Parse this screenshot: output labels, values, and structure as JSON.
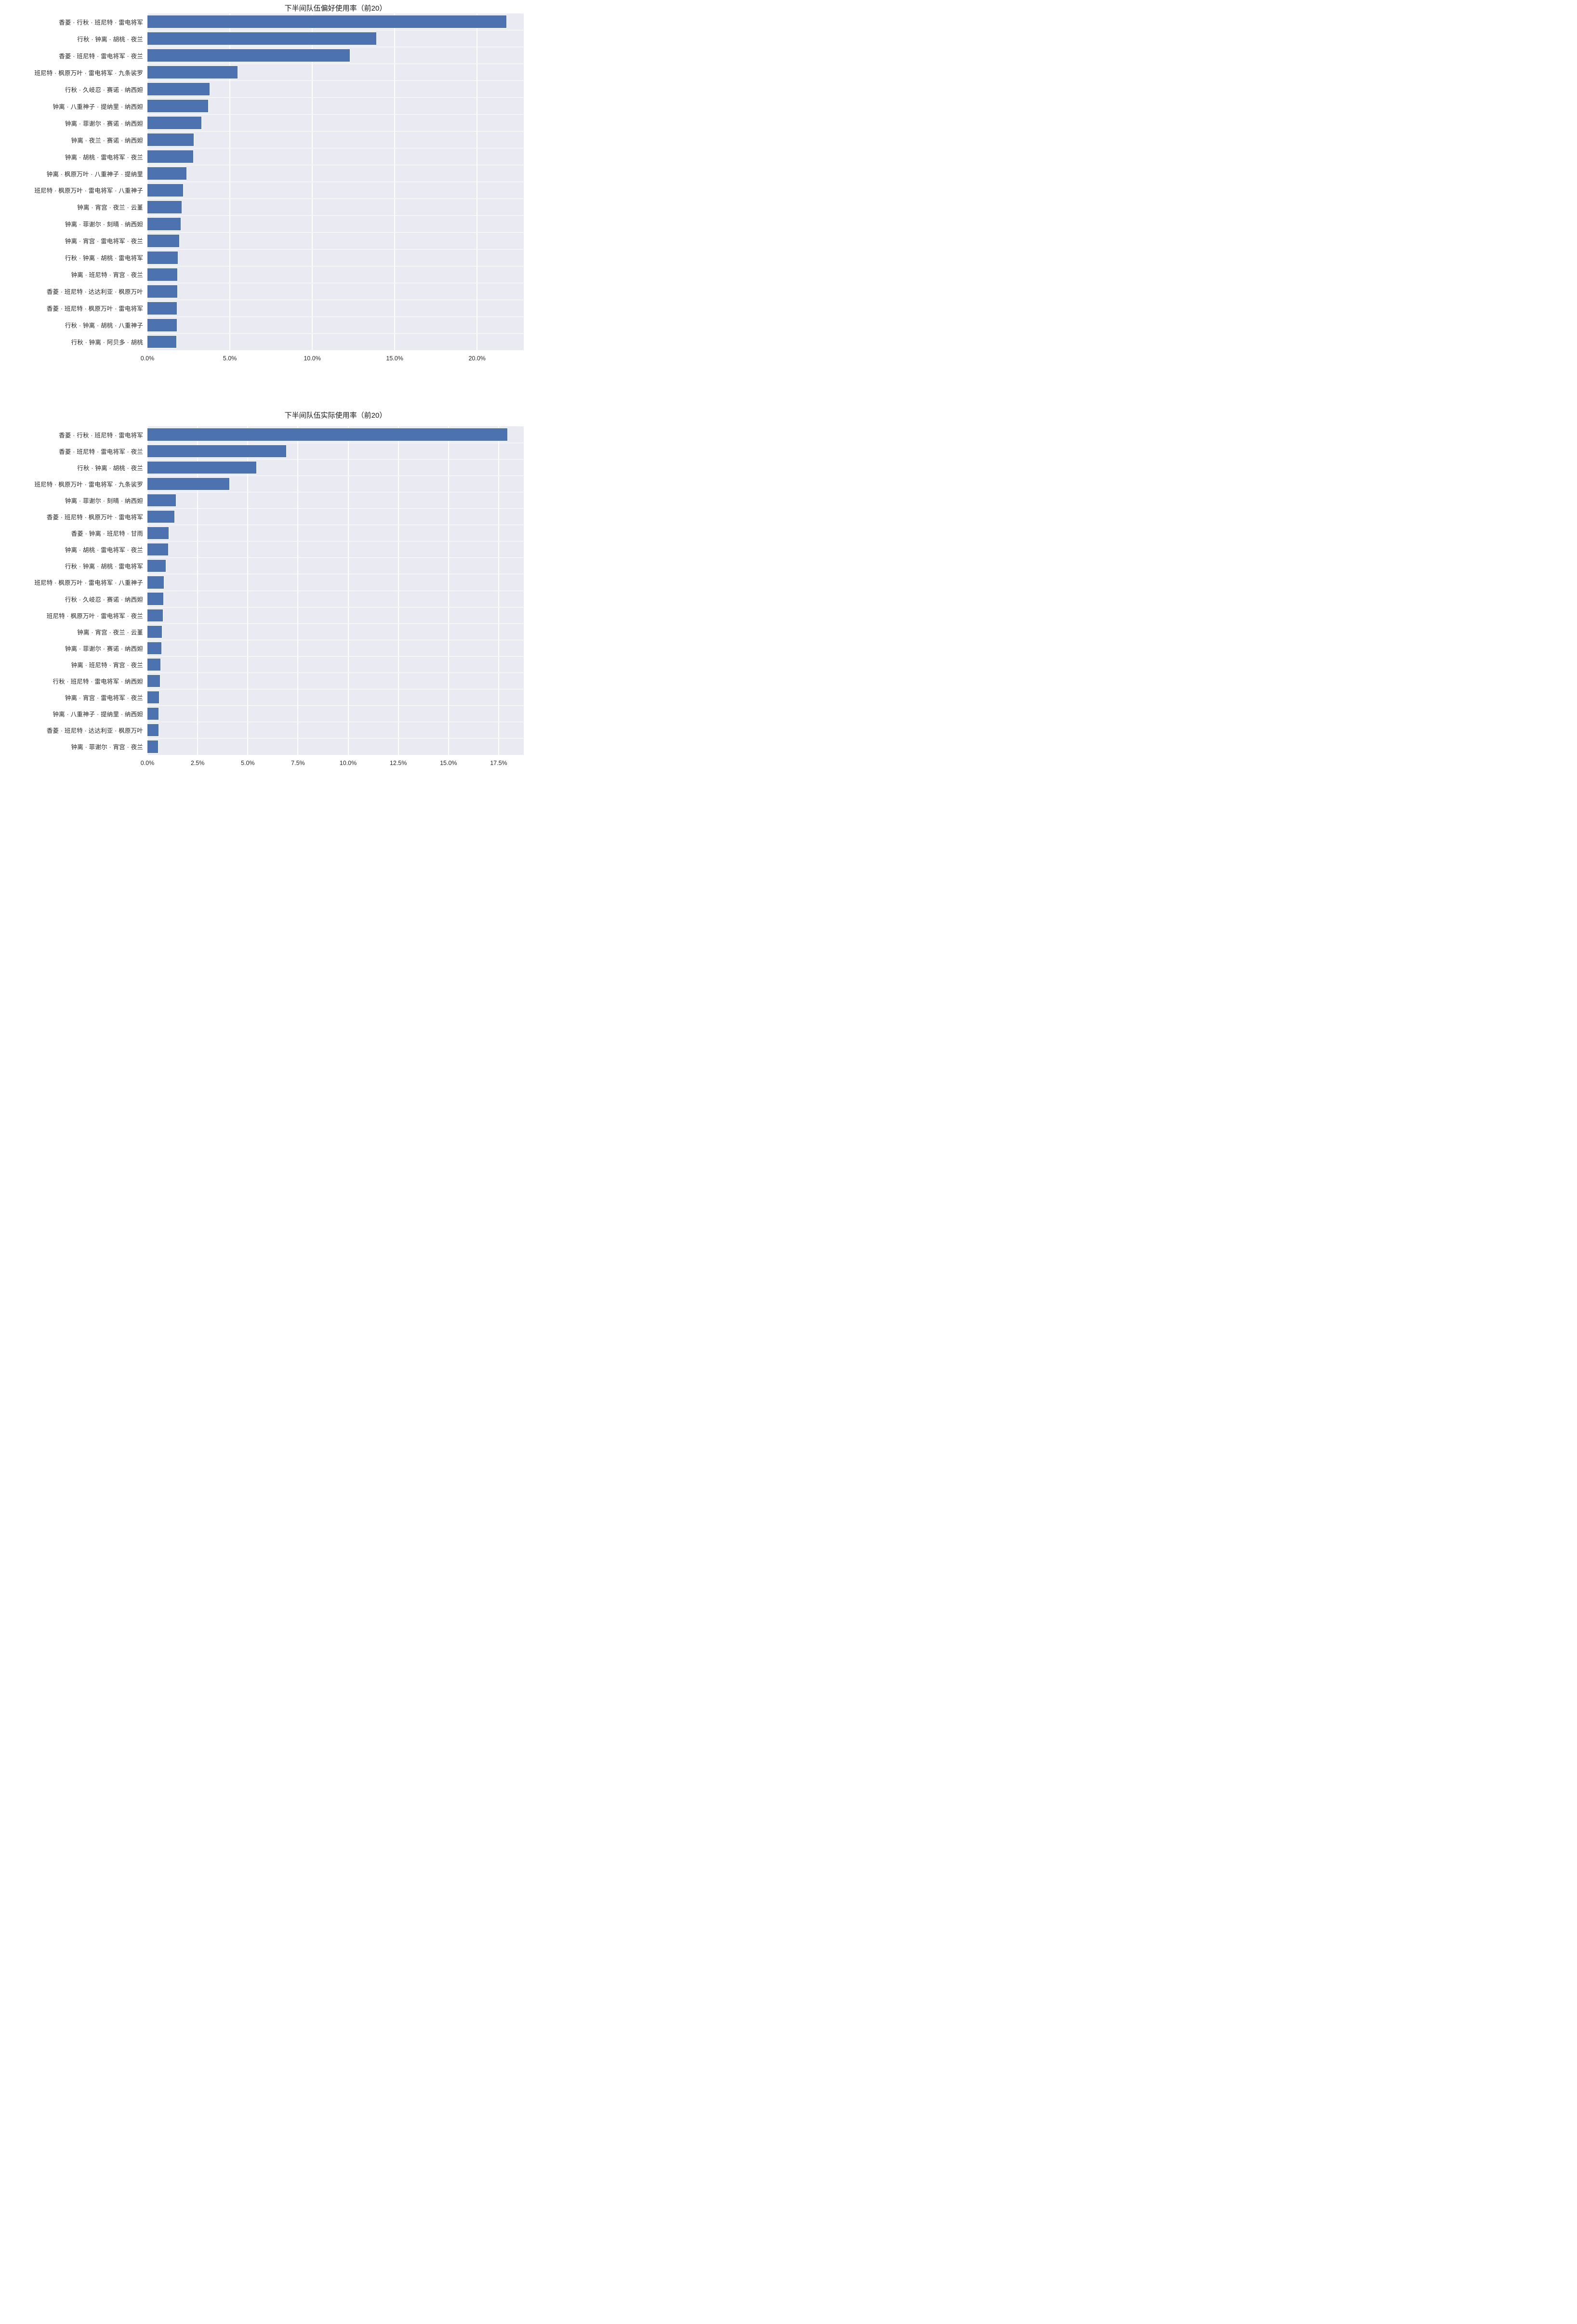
{
  "figure": {
    "background": "#ffffff"
  },
  "colors": {
    "bar": "#4c72b0",
    "plot_background": "#eaeaf2",
    "gridline": "#ffffff",
    "title_text": "#1a1a1a",
    "label_text": "#262626"
  },
  "chart_data": [
    {
      "type": "bar",
      "orientation": "horizontal",
      "title": "下半间队伍偏好使用率（前20）",
      "xlabel": "",
      "ylabel": "",
      "grid": true,
      "legend": null,
      "x_ticks": [
        "0.0%",
        "5.0%",
        "10.0%",
        "15.0%",
        "20.0%"
      ],
      "x_tick_values": [
        0,
        5,
        10,
        15,
        20
      ],
      "xlim": [
        0,
        22.83
      ],
      "value_unit": "%",
      "categories": [
        "香菱 · 行秋 · 班尼特 · 雷电将军",
        "行秋 · 钟离 · 胡桃 · 夜兰",
        "香菱 · 班尼特 · 雷电将军 · 夜兰",
        "班尼特 · 枫原万叶 · 雷电将军 · 九条裟罗",
        "行秋 · 久岐忍 · 赛诺 · 纳西妲",
        "钟离 · 八重神子 · 提纳里 · 纳西妲",
        "钟离 · 菲谢尔 · 赛诺 · 纳西妲",
        "钟离 · 夜兰 · 赛诺 · 纳西妲",
        "钟离 · 胡桃 · 雷电将军 · 夜兰",
        "钟离 · 枫原万叶 · 八重神子 · 提纳里",
        "班尼特 · 枫原万叶 · 雷电将军 · 八重神子",
        "钟离 · 宵宫 · 夜兰 · 云堇",
        "钟离 · 菲谢尔 · 刻晴 · 纳西妲",
        "钟离 · 宵宫 · 雷电将军 · 夜兰",
        "行秋 · 钟离 · 胡桃 · 雷电将军",
        "钟离 · 班尼特 · 宵宫 · 夜兰",
        "香菱 · 班尼特 · 达达利亚 · 枫原万叶",
        "香菱 · 班尼特 · 枫原万叶 · 雷电将军",
        "行秋 · 钟离 · 胡桃 · 八重神子",
        "行秋 · 钟离 · 阿贝多 · 胡桃"
      ],
      "values": [
        21.8,
        13.9,
        12.3,
        5.5,
        3.8,
        3.7,
        3.3,
        2.85,
        2.8,
        2.4,
        2.2,
        2.1,
        2.05,
        1.97,
        1.87,
        1.85,
        1.84,
        1.82,
        1.8,
        1.77
      ]
    },
    {
      "type": "bar",
      "orientation": "horizontal",
      "title": "下半间队伍实际使用率（前20）",
      "xlabel": "",
      "ylabel": "",
      "grid": true,
      "legend": null,
      "x_ticks": [
        "0.0%",
        "2.5%",
        "5.0%",
        "7.5%",
        "10.0%",
        "12.5%",
        "15.0%",
        "17.5%"
      ],
      "x_tick_values": [
        0,
        2.5,
        5,
        7.5,
        10,
        12.5,
        15,
        17.5
      ],
      "xlim": [
        0,
        18.75
      ],
      "value_unit": "%",
      "categories": [
        "香菱 · 行秋 · 班尼特 · 雷电将军",
        "香菱 · 班尼特 · 雷电将军 · 夜兰",
        "行秋 · 钟离 · 胡桃 · 夜兰",
        "班尼特 · 枫原万叶 · 雷电将军 · 九条裟罗",
        "钟离 · 菲谢尔 · 刻晴 · 纳西妲",
        "香菱 · 班尼特 · 枫原万叶 · 雷电将军",
        "香菱 · 钟离 · 班尼特 · 甘雨",
        "钟离 · 胡桃 · 雷电将军 · 夜兰",
        "行秋 · 钟离 · 胡桃 · 雷电将军",
        "班尼特 · 枫原万叶 · 雷电将军 · 八重神子",
        "行秋 · 久岐忍 · 赛诺 · 纳西妲",
        "班尼特 · 枫原万叶 · 雷电将军 · 夜兰",
        "钟离 · 宵宫 · 夜兰 · 云堇",
        "钟离 · 菲谢尔 · 赛诺 · 纳西妲",
        "钟离 · 班尼特 · 宵宫 · 夜兰",
        "行秋 · 班尼特 · 雷电将军 · 纳西妲",
        "钟离 · 宵宫 · 雷电将军 · 夜兰",
        "钟离 · 八重神子 · 提纳里 · 纳西妲",
        "香菱 · 班尼特 · 达达利亚 · 枫原万叶",
        "钟离 · 菲谢尔 · 宵宫 · 夜兰"
      ],
      "values": [
        17.95,
        6.94,
        5.45,
        4.1,
        1.45,
        1.38,
        1.07,
        1.05,
        0.93,
        0.84,
        0.81,
        0.79,
        0.75,
        0.73,
        0.68,
        0.64,
        0.61,
        0.58,
        0.57,
        0.56
      ]
    }
  ]
}
